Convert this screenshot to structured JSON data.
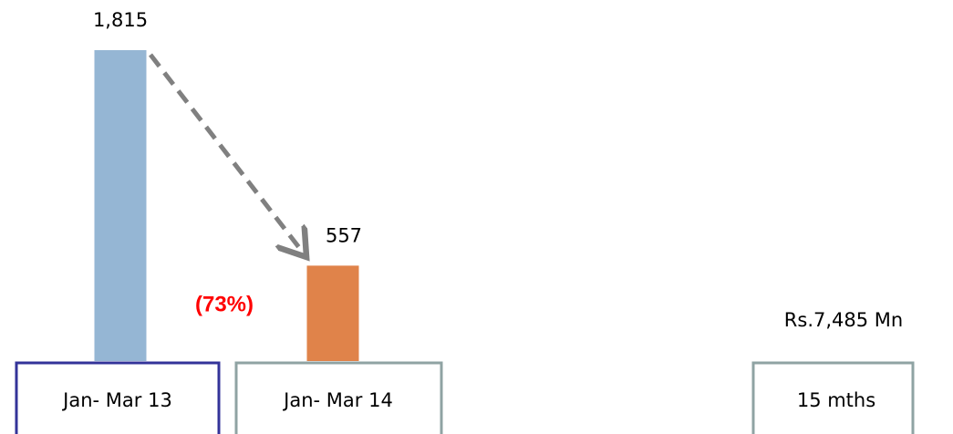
{
  "chart_data": {
    "type": "bar",
    "categories": [
      "Jan- Mar 13",
      "Jan- Mar 14"
    ],
    "values": [
      1815,
      557
    ],
    "value_labels": [
      "1,815",
      "557"
    ],
    "colors": [
      "#95b6d4",
      "#e0834a"
    ],
    "annotations": [
      "(73%)",
      "Rs.7,485 Mn",
      "15 mths"
    ]
  }
}
